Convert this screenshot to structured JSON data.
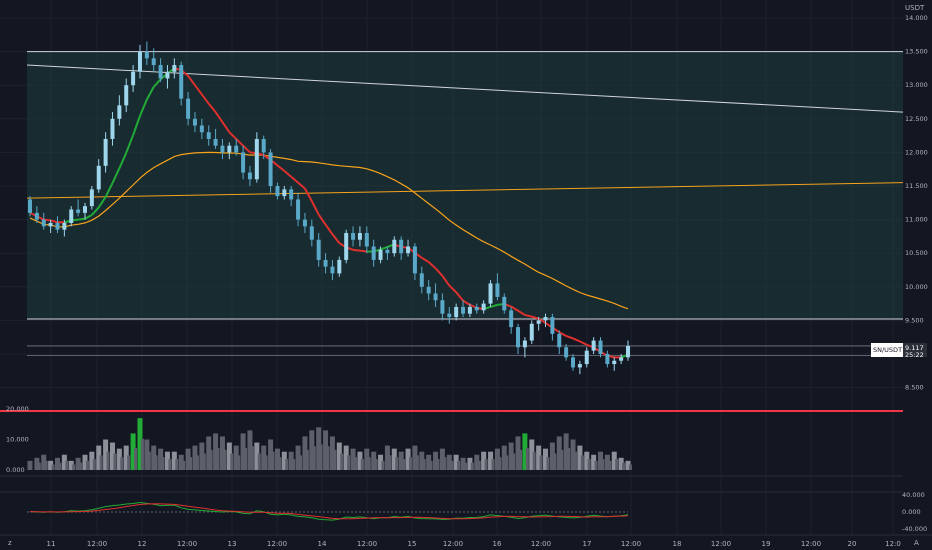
{
  "chart_data": {
    "type": "candlestick",
    "currency_label": "USDT",
    "symbol_label": "SN/USDT",
    "last_price": "9.117",
    "countdown": "25:22",
    "price_ticks": [
      "14.000",
      "13.500",
      "13.000",
      "12.500",
      "12.000",
      "11.500",
      "11.000",
      "10.500",
      "10.000",
      "9.500",
      "8.500"
    ],
    "volume_ticks": [
      "20.000",
      "10.000",
      "0.000"
    ],
    "osc_ticks": [
      "40.000",
      "0.000",
      "-40.000"
    ],
    "time_ticks": [
      "11",
      "12:00",
      "12",
      "12:00",
      "13",
      "12:00",
      "14",
      "12:00",
      "15",
      "12:00",
      "16",
      "12:00",
      "17",
      "12:00",
      "18",
      "12:00",
      "19",
      "12:00",
      "20",
      "12:0"
    ],
    "ohlc": [
      [
        11.3,
        11.35,
        11.05,
        11.1
      ],
      [
        11.1,
        11.2,
        10.95,
        11.0
      ],
      [
        11.0,
        11.1,
        10.85,
        10.9
      ],
      [
        10.9,
        11.0,
        10.8,
        10.95
      ],
      [
        10.95,
        11.05,
        10.8,
        10.85
      ],
      [
        10.85,
        11.0,
        10.75,
        10.95
      ],
      [
        10.95,
        11.2,
        10.9,
        11.15
      ],
      [
        11.15,
        11.3,
        11.05,
        11.1
      ],
      [
        11.1,
        11.25,
        11.0,
        11.2
      ],
      [
        11.2,
        11.5,
        11.15,
        11.45
      ],
      [
        11.45,
        11.9,
        11.4,
        11.8
      ],
      [
        11.8,
        12.3,
        11.7,
        12.2
      ],
      [
        12.2,
        12.6,
        12.1,
        12.5
      ],
      [
        12.5,
        12.85,
        12.4,
        12.7
      ],
      [
        12.7,
        13.1,
        12.6,
        13.0
      ],
      [
        13.0,
        13.3,
        12.9,
        13.2
      ],
      [
        13.2,
        13.6,
        13.1,
        13.5
      ],
      [
        13.5,
        13.65,
        13.3,
        13.4
      ],
      [
        13.4,
        13.55,
        13.2,
        13.3
      ],
      [
        13.3,
        13.4,
        13.05,
        13.1
      ],
      [
        13.1,
        13.3,
        12.95,
        13.2
      ],
      [
        13.2,
        13.4,
        13.1,
        13.3
      ],
      [
        13.3,
        13.35,
        12.7,
        12.8
      ],
      [
        12.8,
        12.9,
        12.4,
        12.5
      ],
      [
        12.5,
        12.6,
        12.3,
        12.4
      ],
      [
        12.4,
        12.5,
        12.2,
        12.3
      ],
      [
        12.3,
        12.4,
        12.1,
        12.2
      ],
      [
        12.2,
        12.35,
        12.05,
        12.1
      ],
      [
        12.1,
        12.2,
        11.9,
        12.0
      ],
      [
        12.0,
        12.15,
        11.9,
        12.1
      ],
      [
        12.1,
        12.2,
        11.95,
        12.0
      ],
      [
        12.0,
        12.1,
        11.6,
        11.7
      ],
      [
        11.7,
        11.8,
        11.5,
        11.6
      ],
      [
        11.6,
        12.3,
        11.55,
        12.2
      ],
      [
        12.2,
        12.25,
        11.9,
        12.0
      ],
      [
        12.0,
        12.05,
        11.4,
        11.5
      ],
      [
        11.5,
        11.55,
        11.3,
        11.35
      ],
      [
        11.35,
        11.5,
        11.3,
        11.45
      ],
      [
        11.45,
        11.5,
        11.2,
        11.3
      ],
      [
        11.3,
        11.4,
        10.9,
        11.0
      ],
      [
        11.0,
        11.1,
        10.8,
        10.9
      ],
      [
        10.9,
        11.0,
        10.6,
        10.7
      ],
      [
        10.7,
        10.8,
        10.3,
        10.4
      ],
      [
        10.4,
        10.5,
        10.2,
        10.3
      ],
      [
        10.3,
        10.4,
        10.1,
        10.2
      ],
      [
        10.2,
        10.45,
        10.15,
        10.4
      ],
      [
        10.4,
        10.85,
        10.35,
        10.8
      ],
      [
        10.8,
        10.9,
        10.6,
        10.7
      ],
      [
        10.7,
        10.9,
        10.6,
        10.8
      ],
      [
        10.8,
        10.9,
        10.5,
        10.6
      ],
      [
        10.6,
        10.7,
        10.3,
        10.4
      ],
      [
        10.4,
        10.6,
        10.35,
        10.55
      ],
      [
        10.55,
        10.6,
        10.4,
        10.5
      ],
      [
        10.5,
        10.75,
        10.45,
        10.7
      ],
      [
        10.7,
        10.75,
        10.4,
        10.5
      ],
      [
        10.5,
        10.7,
        10.45,
        10.6
      ],
      [
        10.6,
        10.65,
        10.1,
        10.2
      ],
      [
        10.2,
        10.3,
        9.9,
        10.0
      ],
      [
        10.0,
        10.1,
        9.8,
        9.9
      ],
      [
        9.9,
        10.05,
        9.7,
        9.8
      ],
      [
        9.8,
        9.9,
        9.5,
        9.6
      ],
      [
        9.6,
        9.7,
        9.45,
        9.55
      ],
      [
        9.55,
        9.75,
        9.5,
        9.7
      ],
      [
        9.7,
        9.8,
        9.55,
        9.6
      ],
      [
        9.6,
        9.75,
        9.55,
        9.7
      ],
      [
        9.7,
        9.75,
        9.6,
        9.65
      ],
      [
        9.65,
        9.8,
        9.6,
        9.75
      ],
      [
        9.75,
        10.1,
        9.7,
        10.05
      ],
      [
        10.05,
        10.2,
        9.8,
        9.85
      ],
      [
        9.85,
        9.9,
        9.6,
        9.65
      ],
      [
        9.65,
        9.7,
        9.3,
        9.4
      ],
      [
        9.4,
        9.45,
        9.0,
        9.1
      ],
      [
        9.1,
        9.25,
        8.95,
        9.2
      ],
      [
        9.2,
        9.5,
        9.15,
        9.45
      ],
      [
        9.45,
        9.55,
        9.35,
        9.5
      ],
      [
        9.5,
        9.6,
        9.4,
        9.55
      ],
      [
        9.55,
        9.6,
        9.2,
        9.3
      ],
      [
        9.3,
        9.35,
        9.0,
        9.1
      ],
      [
        9.1,
        9.15,
        8.9,
        8.95
      ],
      [
        8.95,
        9.0,
        8.75,
        8.8
      ],
      [
        8.8,
        8.9,
        8.7,
        8.85
      ],
      [
        8.85,
        9.1,
        8.8,
        9.05
      ],
      [
        9.05,
        9.25,
        9.0,
        9.2
      ],
      [
        9.2,
        9.25,
        8.95,
        9.0
      ],
      [
        9.0,
        9.05,
        8.8,
        8.85
      ],
      [
        8.85,
        8.95,
        8.75,
        8.9
      ],
      [
        8.9,
        9.0,
        8.85,
        8.95
      ],
      [
        8.95,
        9.2,
        8.9,
        9.12
      ]
    ],
    "volume": [
      3,
      4,
      5,
      3,
      4,
      5,
      3,
      4,
      5,
      6,
      8,
      10,
      9,
      7,
      8,
      12,
      17,
      10,
      8,
      7,
      6,
      6,
      5,
      7,
      8,
      9,
      11,
      12,
      11,
      9,
      8,
      12,
      13,
      9,
      8,
      10,
      7,
      6,
      6,
      8,
      11,
      13,
      14,
      13,
      11,
      9,
      8,
      7,
      6,
      7,
      6,
      5,
      8,
      7,
      6,
      7,
      8,
      6,
      5,
      6,
      7,
      5,
      5,
      4,
      4,
      5,
      6,
      6,
      7,
      8,
      9,
      11,
      12,
      10,
      8,
      7,
      9,
      11,
      12,
      10,
      8,
      6,
      5,
      6,
      5,
      6,
      4,
      3
    ],
    "levels": {
      "upper": 13.5,
      "lower": 9.52,
      "price_line1": 9.12,
      "price_line2": 8.98
    },
    "trendline_white": [
      [
        0,
        13.3
      ],
      [
        1,
        12.6
      ]
    ],
    "trendline_orange": [
      [
        0,
        11.32
      ],
      [
        1,
        11.55
      ]
    ],
    "osc_ylim": [
      -40,
      40
    ]
  }
}
